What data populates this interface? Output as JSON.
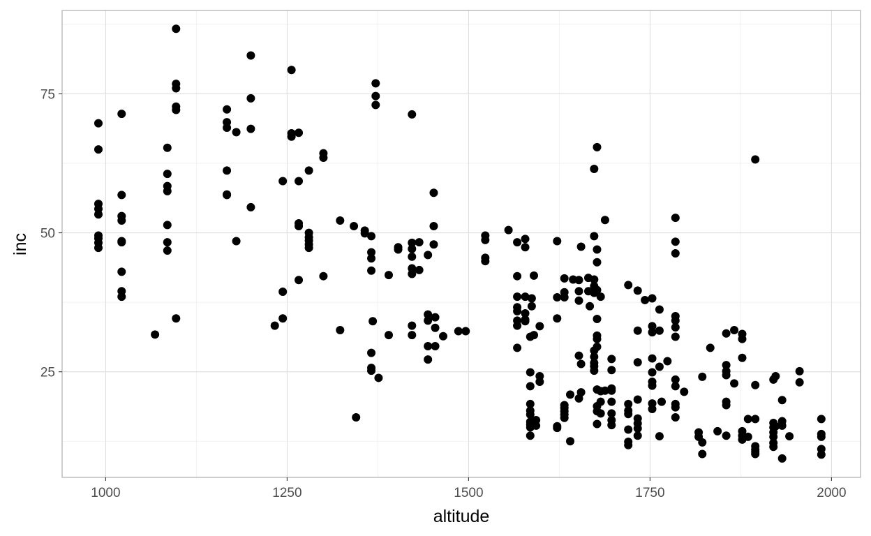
{
  "chart_data": {
    "type": "scatter",
    "title": "",
    "xlabel": "altitude",
    "ylabel": "inc",
    "xlim": [
      940,
      2040
    ],
    "ylim": [
      6,
      90
    ],
    "x_ticks": [
      1000,
      1250,
      1500,
      1750,
      2000
    ],
    "x_tick_labels": [
      "1000",
      "1250",
      "1500",
      "1750",
      "2000"
    ],
    "y_ticks": [
      25,
      50,
      75
    ],
    "y_tick_labels": [
      "25",
      "50",
      "75"
    ],
    "grid": true,
    "legend": "none",
    "point_color": "#000000",
    "theme": "light",
    "points": [
      [
        990,
        69.7
      ],
      [
        990,
        65.0
      ],
      [
        990,
        55.2
      ],
      [
        990,
        54.3
      ],
      [
        990,
        53.3
      ],
      [
        990,
        49.5
      ],
      [
        990,
        49.0
      ],
      [
        990,
        48.2
      ],
      [
        990,
        47.3
      ],
      [
        1022,
        71.4
      ],
      [
        1022,
        56.8
      ],
      [
        1022,
        53.0
      ],
      [
        1022,
        52.2
      ],
      [
        1022,
        48.5
      ],
      [
        1022,
        48.3
      ],
      [
        1022,
        43.0
      ],
      [
        1022,
        39.5
      ],
      [
        1022,
        38.5
      ],
      [
        1068,
        31.7
      ],
      [
        1085,
        65.3
      ],
      [
        1085,
        60.6
      ],
      [
        1085,
        58.4
      ],
      [
        1085,
        57.5
      ],
      [
        1085,
        51.4
      ],
      [
        1085,
        48.3
      ],
      [
        1085,
        46.8
      ],
      [
        1097,
        86.7
      ],
      [
        1097,
        76.8
      ],
      [
        1097,
        76.0
      ],
      [
        1097,
        72.7
      ],
      [
        1097,
        72.1
      ],
      [
        1097,
        34.6
      ],
      [
        1167,
        72.2
      ],
      [
        1167,
        69.9
      ],
      [
        1167,
        68.9
      ],
      [
        1167,
        61.2
      ],
      [
        1167,
        56.9
      ],
      [
        1167,
        56.8
      ],
      [
        1180,
        68.1
      ],
      [
        1180,
        48.5
      ],
      [
        1200,
        81.9
      ],
      [
        1200,
        74.2
      ],
      [
        1200,
        68.7
      ],
      [
        1200,
        54.6
      ],
      [
        1233,
        33.3
      ],
      [
        1244,
        59.3
      ],
      [
        1244,
        39.4
      ],
      [
        1244,
        34.6
      ],
      [
        1256,
        79.3
      ],
      [
        1256,
        67.9
      ],
      [
        1256,
        67.3
      ],
      [
        1266,
        68.0
      ],
      [
        1266,
        59.3
      ],
      [
        1266,
        51.7
      ],
      [
        1266,
        51.2
      ],
      [
        1266,
        41.5
      ],
      [
        1280,
        61.2
      ],
      [
        1280,
        50.0
      ],
      [
        1280,
        49.2
      ],
      [
        1280,
        48.6
      ],
      [
        1280,
        47.9
      ],
      [
        1280,
        47.3
      ],
      [
        1300,
        64.3
      ],
      [
        1300,
        63.5
      ],
      [
        1300,
        42.2
      ],
      [
        1323,
        52.2
      ],
      [
        1323,
        32.5
      ],
      [
        1342,
        51.2
      ],
      [
        1345,
        16.8
      ],
      [
        1357,
        50.4
      ],
      [
        1357,
        49.9
      ],
      [
        1366,
        49.4
      ],
      [
        1366,
        46.5
      ],
      [
        1366,
        45.4
      ],
      [
        1366,
        43.2
      ],
      [
        1366,
        28.4
      ],
      [
        1366,
        25.7
      ],
      [
        1366,
        25.2
      ],
      [
        1368,
        34.1
      ],
      [
        1372,
        76.9
      ],
      [
        1372,
        74.6
      ],
      [
        1372,
        73.0
      ],
      [
        1376,
        23.9
      ],
      [
        1390,
        42.4
      ],
      [
        1390,
        31.6
      ],
      [
        1403,
        47.4
      ],
      [
        1403,
        47.0
      ],
      [
        1422,
        71.3
      ],
      [
        1422,
        48.2
      ],
      [
        1422,
        47.1
      ],
      [
        1422,
        45.7
      ],
      [
        1422,
        43.6
      ],
      [
        1422,
        42.6
      ],
      [
        1422,
        33.3
      ],
      [
        1422,
        31.6
      ],
      [
        1432,
        48.3
      ],
      [
        1432,
        43.3
      ],
      [
        1444,
        46.0
      ],
      [
        1444,
        35.3
      ],
      [
        1444,
        34.2
      ],
      [
        1444,
        29.6
      ],
      [
        1444,
        27.2
      ],
      [
        1452,
        57.2
      ],
      [
        1452,
        51.2
      ],
      [
        1452,
        47.9
      ],
      [
        1454,
        34.8
      ],
      [
        1454,
        32.9
      ],
      [
        1454,
        29.6
      ],
      [
        1465,
        31.4
      ],
      [
        1486,
        32.3
      ],
      [
        1496,
        32.3
      ],
      [
        1523,
        49.5
      ],
      [
        1523,
        48.7
      ],
      [
        1523,
        45.5
      ],
      [
        1523,
        44.9
      ],
      [
        1555,
        50.5
      ],
      [
        1567,
        48.3
      ],
      [
        1567,
        42.2
      ],
      [
        1567,
        38.5
      ],
      [
        1567,
        36.6
      ],
      [
        1567,
        35.9
      ],
      [
        1567,
        34.2
      ],
      [
        1567,
        33.3
      ],
      [
        1567,
        29.3
      ],
      [
        1578,
        48.9
      ],
      [
        1578,
        47.4
      ],
      [
        1578,
        38.5
      ],
      [
        1578,
        35.5
      ],
      [
        1578,
        34.4
      ],
      [
        1578,
        34.1
      ],
      [
        1585,
        31.3
      ],
      [
        1585,
        24.9
      ],
      [
        1585,
        22.4
      ],
      [
        1585,
        19.2
      ],
      [
        1585,
        18.0
      ],
      [
        1585,
        17.3
      ],
      [
        1585,
        16.0
      ],
      [
        1585,
        15.5
      ],
      [
        1585,
        15.0
      ],
      [
        1585,
        13.5
      ],
      [
        1587,
        38.2
      ],
      [
        1587,
        36.8
      ],
      [
        1590,
        42.3
      ],
      [
        1590,
        31.6
      ],
      [
        1590,
        15.5
      ],
      [
        1593,
        16.3
      ],
      [
        1593,
        15.3
      ],
      [
        1598,
        33.2
      ],
      [
        1598,
        24.2
      ],
      [
        1598,
        23.2
      ],
      [
        1622,
        48.5
      ],
      [
        1622,
        38.4
      ],
      [
        1622,
        34.6
      ],
      [
        1622,
        15.2
      ],
      [
        1622,
        14.9
      ],
      [
        1632,
        41.8
      ],
      [
        1632,
        39.3
      ],
      [
        1632,
        38.4
      ],
      [
        1632,
        19.0
      ],
      [
        1632,
        18.5
      ],
      [
        1632,
        17.9
      ],
      [
        1632,
        17.3
      ],
      [
        1632,
        16.7
      ],
      [
        1640,
        20.9
      ],
      [
        1640,
        12.5
      ],
      [
        1644,
        41.6
      ],
      [
        1652,
        41.5
      ],
      [
        1652,
        39.5
      ],
      [
        1652,
        37.8
      ],
      [
        1652,
        27.9
      ],
      [
        1652,
        20.2
      ],
      [
        1655,
        47.5
      ],
      [
        1655,
        26.4
      ],
      [
        1655,
        21.3
      ],
      [
        1665,
        41.9
      ],
      [
        1665,
        39.5
      ],
      [
        1667,
        36.8
      ],
      [
        1673,
        61.5
      ],
      [
        1673,
        49.4
      ],
      [
        1673,
        41.6
      ],
      [
        1673,
        40.4
      ],
      [
        1673,
        39.2
      ],
      [
        1673,
        28.8
      ],
      [
        1673,
        27.7
      ],
      [
        1673,
        26.6
      ],
      [
        1673,
        26.0
      ],
      [
        1673,
        25.2
      ],
      [
        1677,
        65.4
      ],
      [
        1677,
        47.0
      ],
      [
        1677,
        44.7
      ],
      [
        1677,
        39.7
      ],
      [
        1677,
        34.5
      ],
      [
        1677,
        31.5
      ],
      [
        1677,
        30.9
      ],
      [
        1677,
        29.5
      ],
      [
        1677,
        21.8
      ],
      [
        1677,
        18.8
      ],
      [
        1677,
        17.9
      ],
      [
        1677,
        15.6
      ],
      [
        1682,
        38.5
      ],
      [
        1682,
        21.5
      ],
      [
        1682,
        19.6
      ],
      [
        1682,
        17.5
      ],
      [
        1688,
        52.3
      ],
      [
        1688,
        21.6
      ],
      [
        1697,
        27.3
      ],
      [
        1697,
        25.3
      ],
      [
        1697,
        22.0
      ],
      [
        1697,
        21.6
      ],
      [
        1697,
        19.6
      ],
      [
        1697,
        17.5
      ],
      [
        1697,
        16.3
      ],
      [
        1697,
        15.4
      ],
      [
        1720,
        40.6
      ],
      [
        1720,
        19.2
      ],
      [
        1720,
        18.0
      ],
      [
        1720,
        17.4
      ],
      [
        1720,
        14.6
      ],
      [
        1720,
        12.4
      ],
      [
        1720,
        11.8
      ],
      [
        1733,
        39.6
      ],
      [
        1733,
        32.4
      ],
      [
        1733,
        26.7
      ],
      [
        1733,
        20.0
      ],
      [
        1733,
        16.6
      ],
      [
        1733,
        15.7
      ],
      [
        1733,
        14.8
      ],
      [
        1733,
        13.5
      ],
      [
        1743,
        37.9
      ],
      [
        1753,
        38.2
      ],
      [
        1753,
        33.2
      ],
      [
        1753,
        32.1
      ],
      [
        1753,
        27.4
      ],
      [
        1753,
        24.9
      ],
      [
        1753,
        23.2
      ],
      [
        1753,
        22.5
      ],
      [
        1753,
        19.3
      ],
      [
        1753,
        18.3
      ],
      [
        1763,
        36.2
      ],
      [
        1763,
        32.4
      ],
      [
        1763,
        25.9
      ],
      [
        1763,
        13.4
      ],
      [
        1766,
        19.6
      ],
      [
        1774,
        26.9
      ],
      [
        1785,
        52.7
      ],
      [
        1785,
        48.4
      ],
      [
        1785,
        46.3
      ],
      [
        1785,
        35.0
      ],
      [
        1785,
        34.2
      ],
      [
        1785,
        33.0
      ],
      [
        1785,
        31.3
      ],
      [
        1785,
        23.6
      ],
      [
        1785,
        22.4
      ],
      [
        1785,
        19.2
      ],
      [
        1785,
        18.6
      ],
      [
        1785,
        16.8
      ],
      [
        1797,
        21.4
      ],
      [
        1817,
        14.1
      ],
      [
        1817,
        13.3
      ],
      [
        1822,
        24.1
      ],
      [
        1822,
        12.3
      ],
      [
        1822,
        10.2
      ],
      [
        1833,
        29.3
      ],
      [
        1843,
        14.3
      ],
      [
        1855,
        31.9
      ],
      [
        1855,
        26.2
      ],
      [
        1855,
        25.1
      ],
      [
        1855,
        24.4
      ],
      [
        1855,
        19.6
      ],
      [
        1855,
        19.0
      ],
      [
        1855,
        13.5
      ],
      [
        1866,
        32.5
      ],
      [
        1866,
        22.9
      ],
      [
        1877,
        31.8
      ],
      [
        1877,
        30.9
      ],
      [
        1877,
        27.5
      ],
      [
        1877,
        14.3
      ],
      [
        1877,
        13.5
      ],
      [
        1877,
        12.8
      ],
      [
        1885,
        16.5
      ],
      [
        1885,
        13.3
      ],
      [
        1895,
        63.2
      ],
      [
        1895,
        22.6
      ],
      [
        1895,
        16.5
      ],
      [
        1895,
        11.6
      ],
      [
        1895,
        11.0
      ],
      [
        1895,
        10.6
      ],
      [
        1895,
        10.2
      ],
      [
        1920,
        23.6
      ],
      [
        1920,
        15.8
      ],
      [
        1920,
        15.0
      ],
      [
        1920,
        14.1
      ],
      [
        1920,
        13.3
      ],
      [
        1920,
        12.2
      ],
      [
        1920,
        11.5
      ],
      [
        1923,
        24.2
      ],
      [
        1923,
        15.2
      ],
      [
        1932,
        19.9
      ],
      [
        1932,
        16.1
      ],
      [
        1932,
        15.3
      ],
      [
        1932,
        9.4
      ],
      [
        1942,
        13.4
      ],
      [
        1956,
        25.1
      ],
      [
        1956,
        23.1
      ],
      [
        1986,
        16.5
      ],
      [
        1986,
        13.8
      ],
      [
        1986,
        13.3
      ],
      [
        1986,
        11.1
      ],
      [
        1986,
        10.1
      ]
    ]
  }
}
